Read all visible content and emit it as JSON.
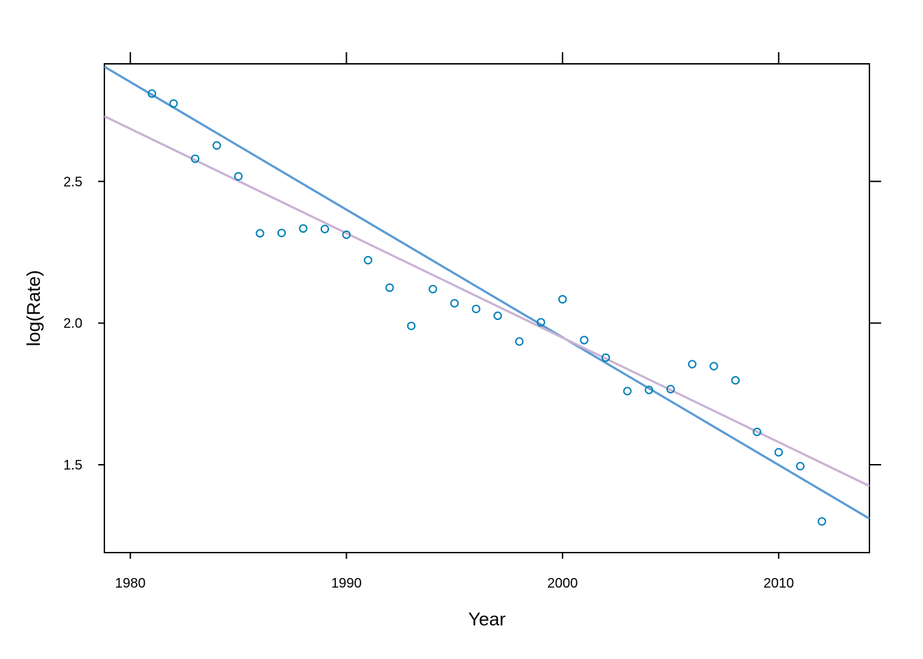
{
  "chart_data": {
    "type": "scatter",
    "xlabel": "Year",
    "ylabel": "log(Rate)",
    "xlim": [
      1978.8,
      2014.2
    ],
    "ylim": [
      1.19,
      2.915
    ],
    "grid": false,
    "x_ticks": [
      1980,
      1990,
      2000,
      2010
    ],
    "x_tick_labels": [
      "1980",
      "1990",
      "2000",
      "2010"
    ],
    "y_ticks": [
      1.5,
      2.0,
      2.5
    ],
    "y_tick_labels": [
      "1.5",
      "2.0",
      "2.5"
    ],
    "points": {
      "color": "#0080b8",
      "x": [
        1981,
        1982,
        1983,
        1984,
        1985,
        1986,
        1987,
        1988,
        1989,
        1990,
        1991,
        1992,
        1993,
        1994,
        1995,
        1996,
        1997,
        1998,
        1999,
        2000,
        2001,
        2002,
        2003,
        2004,
        2005,
        2006,
        2007,
        2008,
        2009,
        2010,
        2011,
        2012
      ],
      "y": [
        2.81,
        2.775,
        2.58,
        2.627,
        2.518,
        2.317,
        2.318,
        2.334,
        2.332,
        2.312,
        2.222,
        2.125,
        1.99,
        2.12,
        2.07,
        2.05,
        2.026,
        1.935,
        2.003,
        2.084,
        1.94,
        1.878,
        1.76,
        1.764,
        1.767,
        1.855,
        1.848,
        1.798,
        1.616,
        1.544,
        1.495,
        1.3
      ]
    },
    "fit_lines": [
      {
        "color": "#5b9bd5",
        "x": [
          1978.8,
          2014.2
        ],
        "y": [
          2.905,
          1.31
        ]
      },
      {
        "color": "#c9b3d3",
        "x": [
          1978.8,
          2014.2
        ],
        "y": [
          2.73,
          1.425
        ]
      }
    ]
  }
}
